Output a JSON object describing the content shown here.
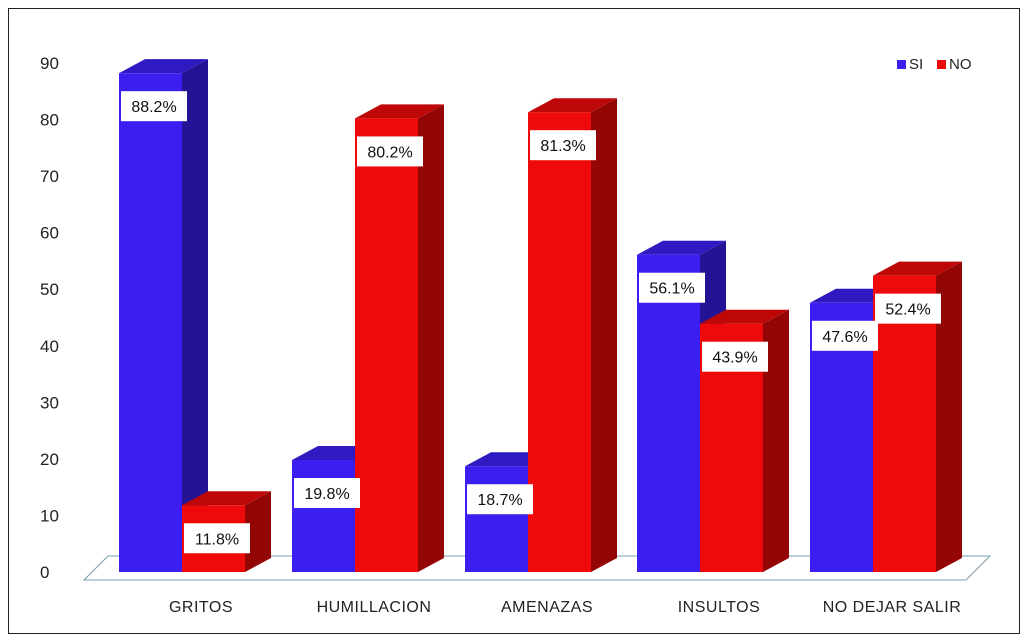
{
  "chart_data": {
    "type": "bar",
    "categories": [
      "GRITOS",
      "HUMILLACION",
      "AMENAZAS",
      "INSULTOS",
      "NO DEJAR SALIR"
    ],
    "series": [
      {
        "name": "SI",
        "color": "#3b1ff0",
        "values": [
          88.2,
          19.8,
          18.7,
          56.1,
          47.6
        ],
        "labels": [
          "88.2%",
          "19.8%",
          "18.7%",
          "56.1%",
          "47.6%"
        ]
      },
      {
        "name": "NO",
        "color": "#ee0a0a",
        "values": [
          11.8,
          80.2,
          81.3,
          43.9,
          52.4
        ],
        "labels": [
          "11.8%",
          "80.2%",
          "81.3%",
          "43.9%",
          "52.4%"
        ]
      }
    ],
    "yticks": [
      "0",
      "10",
      "20",
      "30",
      "40",
      "50",
      "60",
      "70",
      "80",
      "90"
    ],
    "ylim": [
      0,
      90
    ],
    "legend_position": "top-right",
    "style": "3d-clustered-column"
  }
}
